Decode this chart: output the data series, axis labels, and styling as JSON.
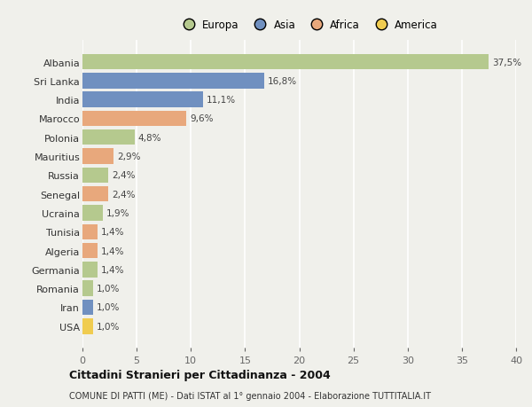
{
  "countries": [
    "Albania",
    "Sri Lanka",
    "India",
    "Marocco",
    "Polonia",
    "Mauritius",
    "Russia",
    "Senegal",
    "Ucraina",
    "Tunisia",
    "Algeria",
    "Germania",
    "Romania",
    "Iran",
    "USA"
  ],
  "values": [
    37.5,
    16.8,
    11.1,
    9.6,
    4.8,
    2.9,
    2.4,
    2.4,
    1.9,
    1.4,
    1.4,
    1.4,
    1.0,
    1.0,
    1.0
  ],
  "labels": [
    "37,5%",
    "16,8%",
    "11,1%",
    "9,6%",
    "4,8%",
    "2,9%",
    "2,4%",
    "2,4%",
    "1,9%",
    "1,4%",
    "1,4%",
    "1,4%",
    "1,0%",
    "1,0%",
    "1,0%"
  ],
  "continents": [
    "Europa",
    "Asia",
    "Asia",
    "Africa",
    "Europa",
    "Africa",
    "Europa",
    "Africa",
    "Europa",
    "Africa",
    "Africa",
    "Europa",
    "Europa",
    "Asia",
    "America"
  ],
  "colors": {
    "Europa": "#b5c98e",
    "Asia": "#7090c0",
    "Africa": "#e8a87c",
    "America": "#f0cc50"
  },
  "legend_labels": [
    "Europa",
    "Asia",
    "Africa",
    "America"
  ],
  "legend_colors": [
    "#b5c98e",
    "#7090c0",
    "#e8a87c",
    "#f0cc50"
  ],
  "title": "Cittadini Stranieri per Cittadinanza - 2004",
  "subtitle": "COMUNE DI PATTI (ME) - Dati ISTAT al 1° gennaio 2004 - Elaborazione TUTTITALIA.IT",
  "xlim": [
    0,
    40
  ],
  "xticks": [
    0,
    5,
    10,
    15,
    20,
    25,
    30,
    35,
    40
  ],
  "bg_color": "#f0f0eb",
  "grid_color": "#ffffff",
  "bar_height": 0.82
}
